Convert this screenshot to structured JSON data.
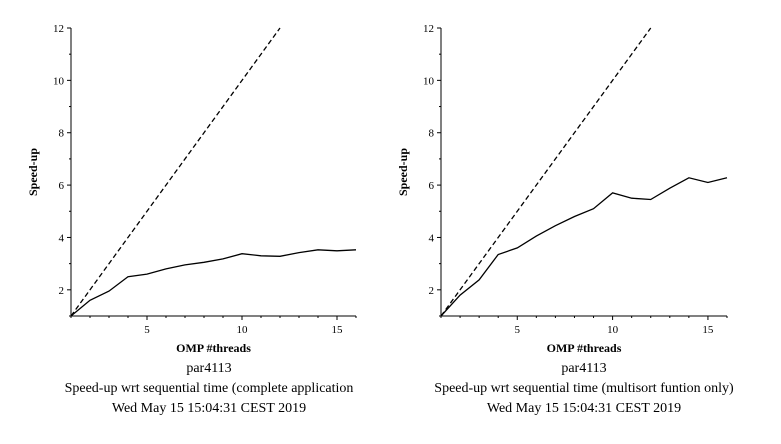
{
  "chart_data": [
    {
      "type": "line",
      "xlabel": "OMP #threads",
      "ylabel": "Speed-up",
      "xlim": [
        1,
        16
      ],
      "ylim": [
        1,
        12
      ],
      "xticks": [
        5,
        10,
        15
      ],
      "yticks": [
        2,
        4,
        6,
        8,
        10,
        12
      ],
      "captions": [
        "par4113",
        "Speed-up wrt sequential time (complete application",
        "Wed May 15 15:04:31 CEST 2019"
      ],
      "ideal": {
        "x": [
          1,
          12
        ],
        "y": [
          1,
          12
        ]
      },
      "series": [
        {
          "x": [
            1,
            2,
            3,
            4,
            5,
            6,
            7,
            8,
            9,
            10,
            11,
            12,
            13,
            14,
            15,
            16
          ],
          "values": [
            1.0,
            1.6,
            1.95,
            2.5,
            2.6,
            2.8,
            2.95,
            3.05,
            3.18,
            3.38,
            3.3,
            3.28,
            3.42,
            3.53,
            3.49,
            3.53
          ]
        }
      ]
    },
    {
      "type": "line",
      "xlabel": "OMP #threads",
      "ylabel": "Speed-up",
      "xlim": [
        1,
        16
      ],
      "ylim": [
        1,
        12
      ],
      "xticks": [
        5,
        10,
        15
      ],
      "yticks": [
        2,
        4,
        6,
        8,
        10,
        12
      ],
      "captions": [
        "par4113",
        "Speed-up wrt sequential time (multisort funtion only)",
        "Wed May 15 15:04:31 CEST 2019"
      ],
      "ideal": {
        "x": [
          1,
          12
        ],
        "y": [
          1,
          12
        ]
      },
      "series": [
        {
          "x": [
            1,
            2,
            3,
            4,
            5,
            6,
            7,
            8,
            9,
            10,
            11,
            12,
            13,
            14,
            15,
            16
          ],
          "values": [
            1.0,
            1.8,
            2.38,
            3.35,
            3.6,
            4.05,
            4.45,
            4.8,
            5.1,
            5.7,
            5.5,
            5.45,
            5.88,
            6.28,
            6.1,
            6.28
          ]
        }
      ]
    }
  ]
}
